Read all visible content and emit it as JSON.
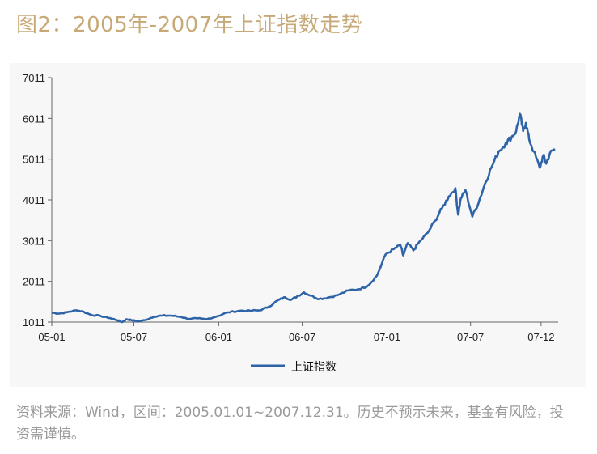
{
  "title": "图2：2005年-2007年上证指数走势",
  "source_note": "资料来源：Wind，区间：2005.01.01~2007.12.31。历史不预示未来，基金有风险，投资需谨慎。",
  "chart_data": {
    "type": "line",
    "y_ticks": [
      "1011",
      "2011",
      "3011",
      "4011",
      "5011",
      "6011",
      "7011"
    ],
    "x_ticks": [
      "05-01",
      "05-07",
      "06-01",
      "06-07",
      "07-01",
      "07-07",
      "07-12"
    ],
    "ylim": [
      1011,
      7011
    ],
    "grid": false,
    "legend_position": "bottom",
    "series": [
      {
        "name": "上证指数",
        "color": "#2e63a8",
        "points": [
          [
            "2005-01-04",
            1243
          ],
          [
            "2005-01-20",
            1220
          ],
          [
            "2005-02-05",
            1250
          ],
          [
            "2005-02-25",
            1300
          ],
          [
            "2005-03-10",
            1280
          ],
          [
            "2005-03-30",
            1190
          ],
          [
            "2005-04-20",
            1160
          ],
          [
            "2005-05-10",
            1110
          ],
          [
            "2005-05-25",
            1060
          ],
          [
            "2005-06-06",
            1011
          ],
          [
            "2005-06-15",
            1080
          ],
          [
            "2005-06-25",
            1060
          ],
          [
            "2005-07-11",
            1025
          ],
          [
            "2005-07-25",
            1060
          ],
          [
            "2005-08-15",
            1150
          ],
          [
            "2005-09-01",
            1170
          ],
          [
            "2005-09-20",
            1170
          ],
          [
            "2005-10-10",
            1140
          ],
          [
            "2005-10-28",
            1090
          ],
          [
            "2005-11-15",
            1100
          ],
          [
            "2005-12-05",
            1080
          ],
          [
            "2005-12-31",
            1161
          ],
          [
            "2006-01-20",
            1250
          ],
          [
            "2006-02-15",
            1290
          ],
          [
            "2006-03-10",
            1290
          ],
          [
            "2006-03-31",
            1300
          ],
          [
            "2006-04-20",
            1390
          ],
          [
            "2006-05-10",
            1550
          ],
          [
            "2006-05-25",
            1620
          ],
          [
            "2006-06-07",
            1560
          ],
          [
            "2006-06-20",
            1640
          ],
          [
            "2006-07-05",
            1740
          ],
          [
            "2006-07-20",
            1660
          ],
          [
            "2006-08-07",
            1580
          ],
          [
            "2006-08-25",
            1610
          ],
          [
            "2006-09-15",
            1670
          ],
          [
            "2006-10-10",
            1790
          ],
          [
            "2006-11-01",
            1820
          ],
          [
            "2006-11-20",
            1900
          ],
          [
            "2006-12-10",
            2150
          ],
          [
            "2006-12-29",
            2675
          ],
          [
            "2007-01-15",
            2800
          ],
          [
            "2007-01-30",
            2900
          ],
          [
            "2007-02-05",
            2650
          ],
          [
            "2007-02-15",
            2950
          ],
          [
            "2007-02-27",
            2770
          ],
          [
            "2007-03-10",
            2950
          ],
          [
            "2007-03-30",
            3200
          ],
          [
            "2007-04-15",
            3500
          ],
          [
            "2007-04-30",
            3800
          ],
          [
            "2007-05-15",
            4100
          ],
          [
            "2007-05-29",
            4300
          ],
          [
            "2007-06-04",
            3650
          ],
          [
            "2007-06-10",
            4050
          ],
          [
            "2007-06-20",
            4250
          ],
          [
            "2007-07-05",
            3600
          ],
          [
            "2007-07-20",
            4000
          ],
          [
            "2007-08-01",
            4400
          ],
          [
            "2007-08-15",
            4800
          ],
          [
            "2007-08-31",
            5200
          ],
          [
            "2007-09-15",
            5400
          ],
          [
            "2007-09-28",
            5550
          ],
          [
            "2007-10-08",
            5700
          ],
          [
            "2007-10-16",
            6120
          ],
          [
            "2007-10-23",
            5700
          ],
          [
            "2007-10-29",
            5900
          ],
          [
            "2007-11-05",
            5500
          ],
          [
            "2007-11-15",
            5200
          ],
          [
            "2007-11-28",
            4800
          ],
          [
            "2007-12-06",
            5100
          ],
          [
            "2007-12-12",
            4900
          ],
          [
            "2007-12-20",
            5150
          ],
          [
            "2007-12-31",
            5261
          ]
        ]
      }
    ]
  }
}
